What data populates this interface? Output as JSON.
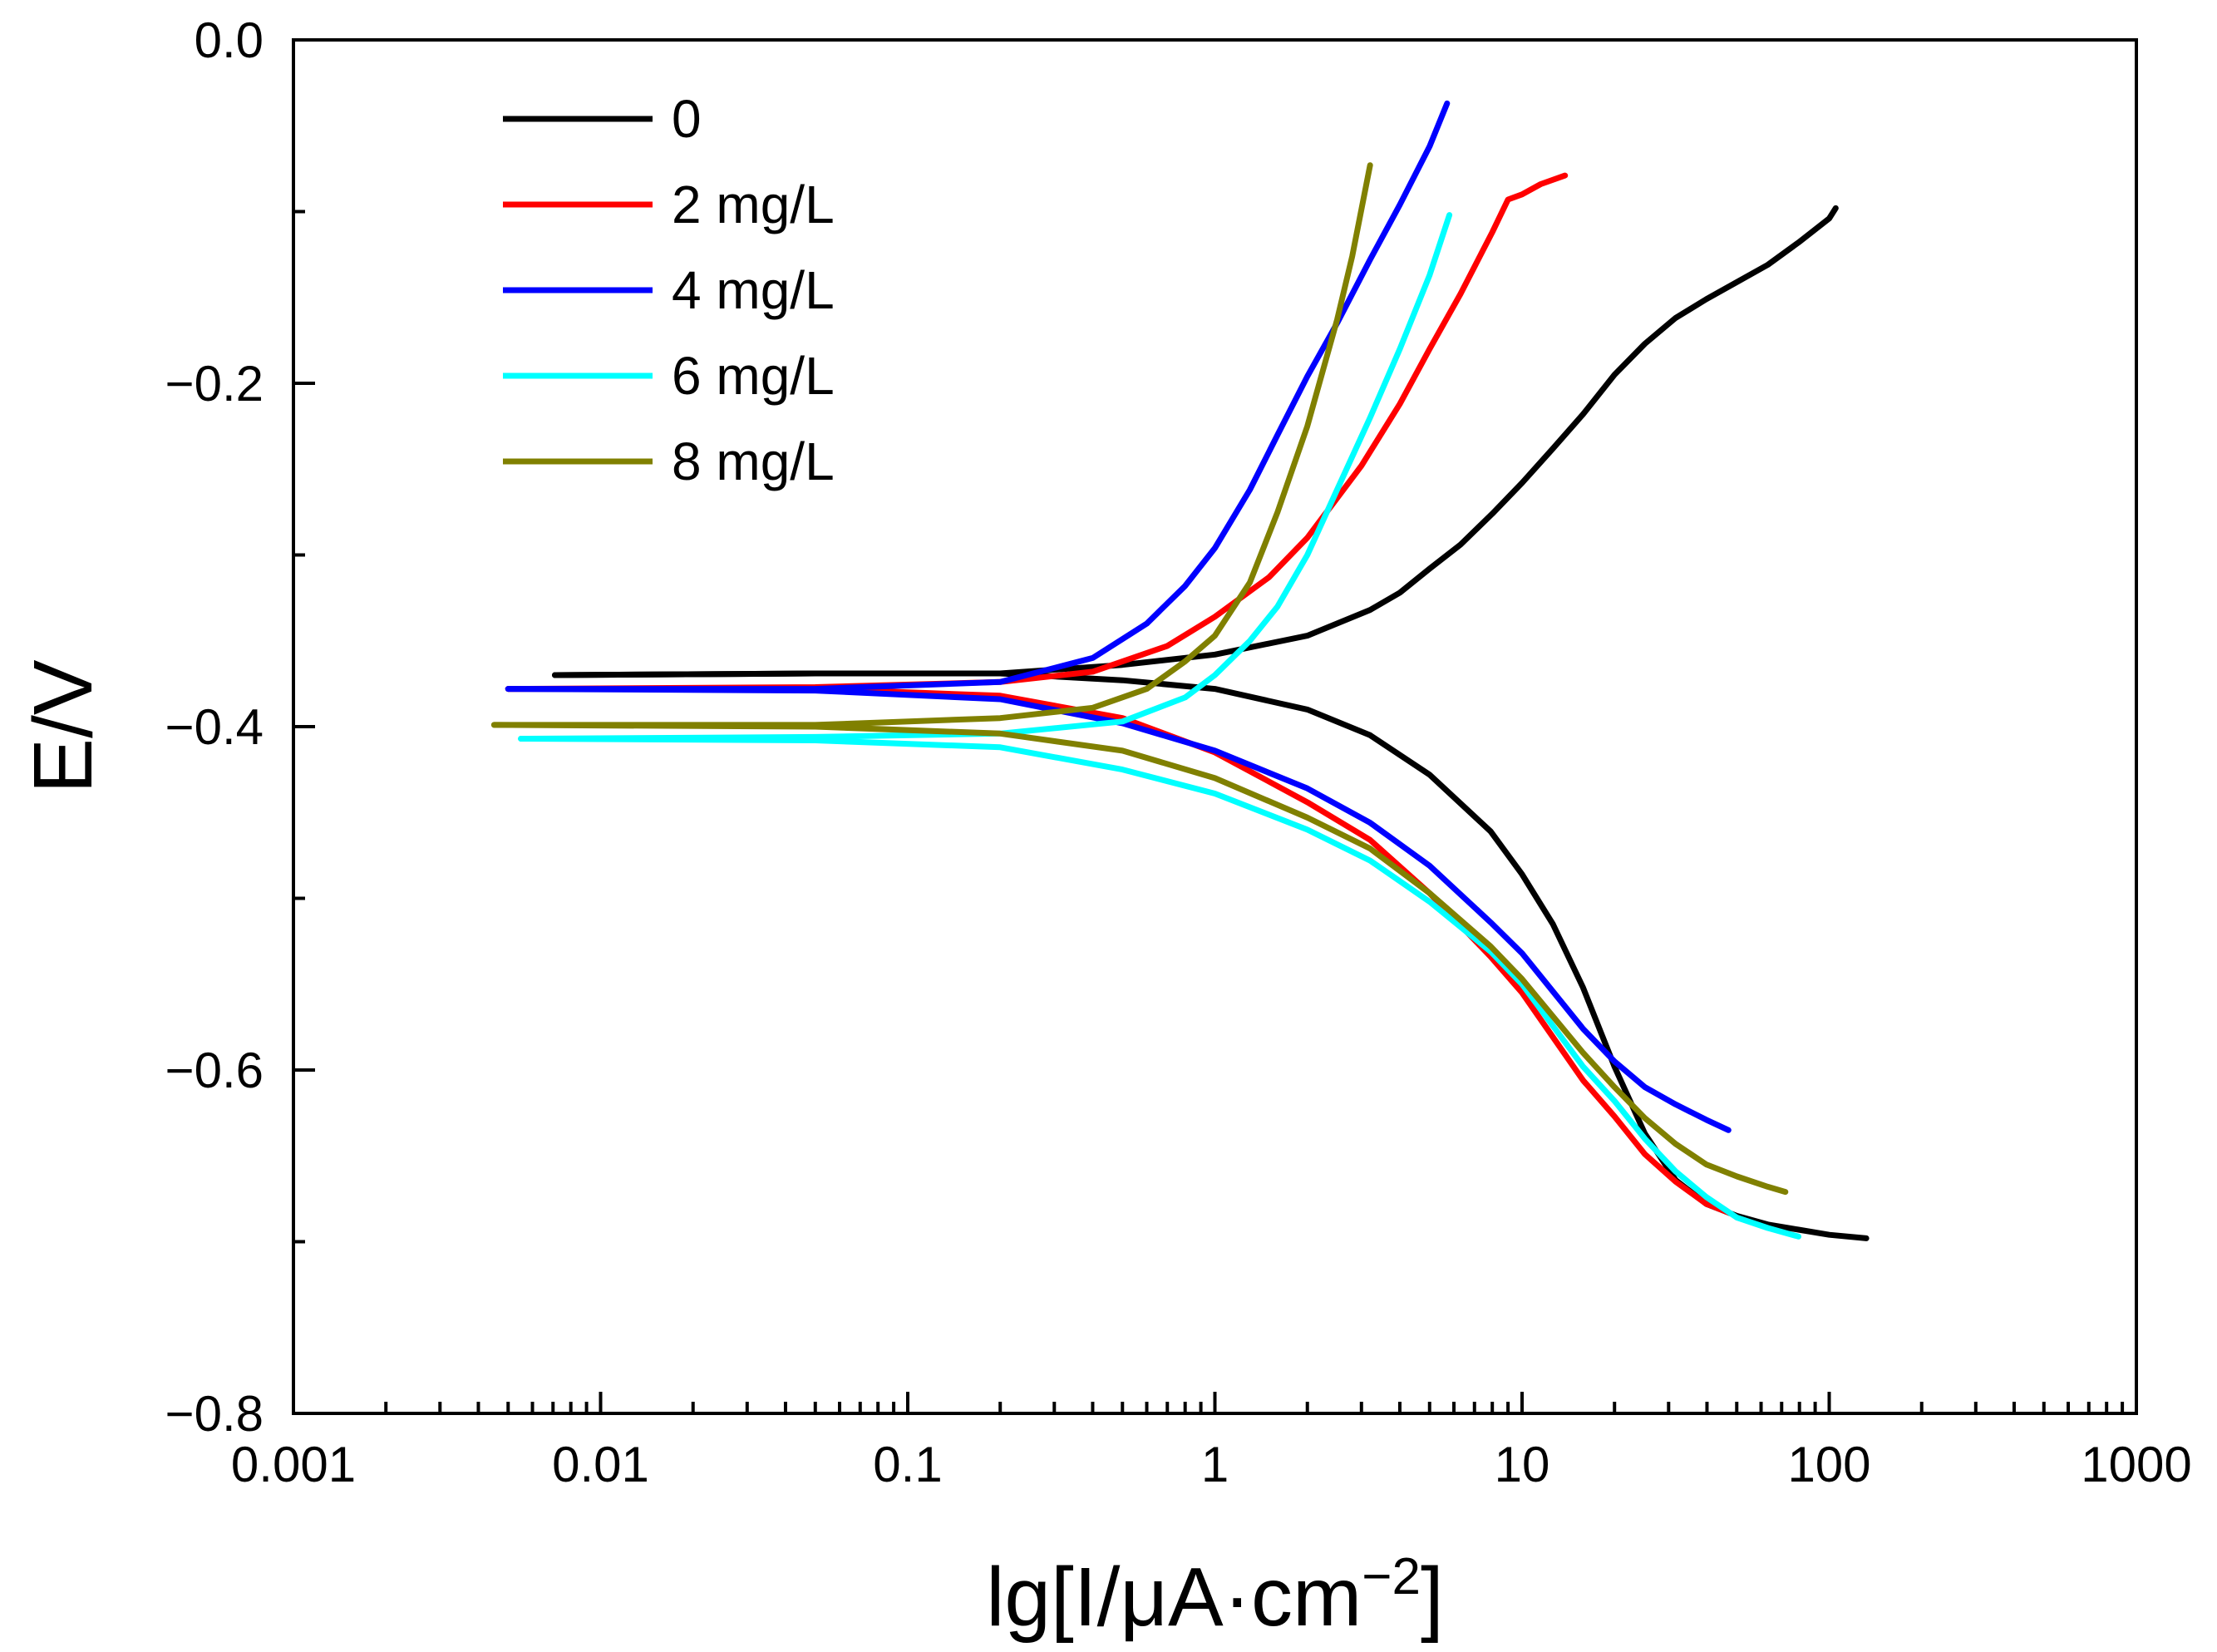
{
  "chart_data": {
    "type": "line",
    "title": "",
    "xlabel": "lg[I/μA·cm",
    "xlabel_exponent": "−2",
    "xlabel_suffix": "]",
    "ylabel": "E/V",
    "xscale": "log",
    "xlim": [
      0.001,
      1000
    ],
    "ylim": [
      -0.8,
      0.0
    ],
    "x_ticks": [
      {
        "value": 0.001,
        "label": "0.001"
      },
      {
        "value": 0.01,
        "label": "0.01"
      },
      {
        "value": 0.1,
        "label": "0.1"
      },
      {
        "value": 1,
        "label": "1"
      },
      {
        "value": 10,
        "label": "10"
      },
      {
        "value": 100,
        "label": "100"
      },
      {
        "value": 1000,
        "label": "1000"
      }
    ],
    "y_ticks": [
      {
        "value": 0.0,
        "label": "0.0"
      },
      {
        "value": -0.2,
        "label": "−0.2"
      },
      {
        "value": -0.4,
        "label": "−0.4"
      },
      {
        "value": -0.6,
        "label": "−0.6"
      },
      {
        "value": -0.8,
        "label": "−0.8"
      }
    ],
    "y_minor_ticks": [
      -0.1,
      -0.3,
      -0.5,
      -0.7
    ],
    "grid": false,
    "legend_position": "top-left",
    "series": [
      {
        "name": "0",
        "color": "#000000",
        "points": [
          [
            0.0071,
            -0.37
          ],
          [
            0.05,
            -0.369
          ],
          [
            0.2,
            -0.369
          ],
          [
            0.5,
            -0.364
          ],
          [
            1.0,
            -0.358
          ],
          [
            2.0,
            -0.347
          ],
          [
            3.2,
            -0.332
          ],
          [
            4.0,
            -0.322
          ],
          [
            5.0,
            -0.308
          ],
          [
            6.3,
            -0.294
          ],
          [
            8.0,
            -0.276
          ],
          [
            10.0,
            -0.258
          ],
          [
            12.6,
            -0.238
          ],
          [
            15.8,
            -0.218
          ],
          [
            20.0,
            -0.195
          ],
          [
            25.1,
            -0.177
          ],
          [
            31.6,
            -0.162
          ],
          [
            39.8,
            -0.151
          ],
          [
            50.1,
            -0.141
          ],
          [
            63.1,
            -0.131
          ],
          [
            79.4,
            -0.118
          ],
          [
            100,
            -0.104
          ],
          [
            105,
            -0.098
          ]
        ],
        "points_lower": [
          [
            0.0071,
            -0.37
          ],
          [
            0.05,
            -0.369
          ],
          [
            0.2,
            -0.369
          ],
          [
            0.5,
            -0.373
          ],
          [
            1.0,
            -0.378
          ],
          [
            2.0,
            -0.39
          ],
          [
            3.2,
            -0.405
          ],
          [
            5.0,
            -0.428
          ],
          [
            7.9,
            -0.461
          ],
          [
            10.0,
            -0.486
          ],
          [
            12.6,
            -0.515
          ],
          [
            15.8,
            -0.552
          ],
          [
            20.0,
            -0.598
          ],
          [
            25.1,
            -0.637
          ],
          [
            31.6,
            -0.664
          ],
          [
            39.8,
            -0.678
          ],
          [
            50.1,
            -0.685
          ],
          [
            63.1,
            -0.69
          ],
          [
            79.4,
            -0.693
          ],
          [
            100,
            -0.696
          ],
          [
            132,
            -0.698
          ]
        ]
      },
      {
        "name": "2 mg/L",
        "color": "#ff0000",
        "points": [
          [
            0.005,
            -0.378
          ],
          [
            0.05,
            -0.377
          ],
          [
            0.2,
            -0.374
          ],
          [
            0.4,
            -0.368
          ],
          [
            0.7,
            -0.353
          ],
          [
            1.0,
            -0.336
          ],
          [
            1.5,
            -0.313
          ],
          [
            2.0,
            -0.29
          ],
          [
            3.0,
            -0.248
          ],
          [
            4.0,
            -0.212
          ],
          [
            5.0,
            -0.18
          ],
          [
            6.3,
            -0.148
          ],
          [
            8.0,
            -0.112
          ],
          [
            9.0,
            -0.093
          ],
          [
            10.0,
            -0.09
          ],
          [
            11.5,
            -0.084
          ],
          [
            13.8,
            -0.079
          ]
        ],
        "points_lower": [
          [
            0.005,
            -0.378
          ],
          [
            0.05,
            -0.378
          ],
          [
            0.2,
            -0.382
          ],
          [
            0.5,
            -0.395
          ],
          [
            1.0,
            -0.415
          ],
          [
            2.0,
            -0.444
          ],
          [
            3.2,
            -0.466
          ],
          [
            5.0,
            -0.497
          ],
          [
            7.9,
            -0.534
          ],
          [
            10.0,
            -0.555
          ],
          [
            15.8,
            -0.606
          ],
          [
            20.0,
            -0.627
          ],
          [
            25.1,
            -0.649
          ],
          [
            31.6,
            -0.665
          ],
          [
            39.8,
            -0.678
          ],
          [
            47,
            -0.683
          ]
        ]
      },
      {
        "name": "4 mg/L",
        "color": "#0000ff",
        "points": [
          [
            0.005,
            -0.378
          ],
          [
            0.05,
            -0.378
          ],
          [
            0.2,
            -0.374
          ],
          [
            0.4,
            -0.36
          ],
          [
            0.6,
            -0.34
          ],
          [
            0.8,
            -0.318
          ],
          [
            1.0,
            -0.296
          ],
          [
            1.3,
            -0.262
          ],
          [
            1.6,
            -0.23
          ],
          [
            2.0,
            -0.196
          ],
          [
            2.5,
            -0.165
          ],
          [
            3.2,
            -0.128
          ],
          [
            4.0,
            -0.096
          ],
          [
            5.0,
            -0.062
          ],
          [
            5.7,
            -0.037
          ]
        ],
        "points_lower": [
          [
            0.005,
            -0.378
          ],
          [
            0.05,
            -0.379
          ],
          [
            0.2,
            -0.384
          ],
          [
            0.5,
            -0.398
          ],
          [
            1.0,
            -0.414
          ],
          [
            2.0,
            -0.436
          ],
          [
            3.2,
            -0.456
          ],
          [
            5.0,
            -0.481
          ],
          [
            7.9,
            -0.514
          ],
          [
            10.0,
            -0.532
          ],
          [
            15.8,
            -0.576
          ],
          [
            20.0,
            -0.595
          ],
          [
            25.1,
            -0.61
          ],
          [
            31.6,
            -0.62
          ],
          [
            39.8,
            -0.629
          ],
          [
            47,
            -0.635
          ]
        ]
      },
      {
        "name": "6 mg/L",
        "color": "#00ffff",
        "points": [
          [
            0.0055,
            -0.407
          ],
          [
            0.05,
            -0.406
          ],
          [
            0.2,
            -0.404
          ],
          [
            0.5,
            -0.397
          ],
          [
            0.8,
            -0.383
          ],
          [
            1.0,
            -0.37
          ],
          [
            1.3,
            -0.35
          ],
          [
            1.6,
            -0.33
          ],
          [
            2.0,
            -0.3
          ],
          [
            2.5,
            -0.262
          ],
          [
            3.2,
            -0.22
          ],
          [
            4.0,
            -0.18
          ],
          [
            5.0,
            -0.137
          ],
          [
            5.8,
            -0.102
          ]
        ],
        "points_lower": [
          [
            0.0055,
            -0.407
          ],
          [
            0.05,
            -0.408
          ],
          [
            0.2,
            -0.412
          ],
          [
            0.5,
            -0.425
          ],
          [
            1.0,
            -0.439
          ],
          [
            2.0,
            -0.46
          ],
          [
            3.2,
            -0.478
          ],
          [
            5.0,
            -0.502
          ],
          [
            7.9,
            -0.531
          ],
          [
            10.0,
            -0.55
          ],
          [
            15.8,
            -0.598
          ],
          [
            20.0,
            -0.618
          ],
          [
            25.1,
            -0.64
          ],
          [
            31.6,
            -0.659
          ],
          [
            39.8,
            -0.674
          ],
          [
            50.1,
            -0.686
          ],
          [
            63.1,
            -0.692
          ],
          [
            79.4,
            -0.697
          ]
        ]
      },
      {
        "name": "8 mg/L",
        "color": "#808000",
        "points": [
          [
            0.0045,
            -0.399
          ],
          [
            0.05,
            -0.399
          ],
          [
            0.2,
            -0.395
          ],
          [
            0.4,
            -0.389
          ],
          [
            0.6,
            -0.378
          ],
          [
            0.8,
            -0.362
          ],
          [
            1.0,
            -0.347
          ],
          [
            1.3,
            -0.316
          ],
          [
            1.6,
            -0.275
          ],
          [
            2.0,
            -0.225
          ],
          [
            2.5,
            -0.163
          ],
          [
            2.8,
            -0.126
          ],
          [
            3.2,
            -0.073
          ]
        ],
        "points_lower": [
          [
            0.0045,
            -0.399
          ],
          [
            0.05,
            -0.4
          ],
          [
            0.2,
            -0.404
          ],
          [
            0.5,
            -0.414
          ],
          [
            1.0,
            -0.43
          ],
          [
            2.0,
            -0.453
          ],
          [
            3.2,
            -0.471
          ],
          [
            5.0,
            -0.497
          ],
          [
            7.9,
            -0.528
          ],
          [
            10.0,
            -0.547
          ],
          [
            15.8,
            -0.59
          ],
          [
            20.0,
            -0.61
          ],
          [
            25.1,
            -0.628
          ],
          [
            31.6,
            -0.643
          ],
          [
            39.8,
            -0.655
          ],
          [
            50.1,
            -0.662
          ],
          [
            63.1,
            -0.668
          ],
          [
            72,
            -0.671
          ]
        ]
      }
    ]
  }
}
